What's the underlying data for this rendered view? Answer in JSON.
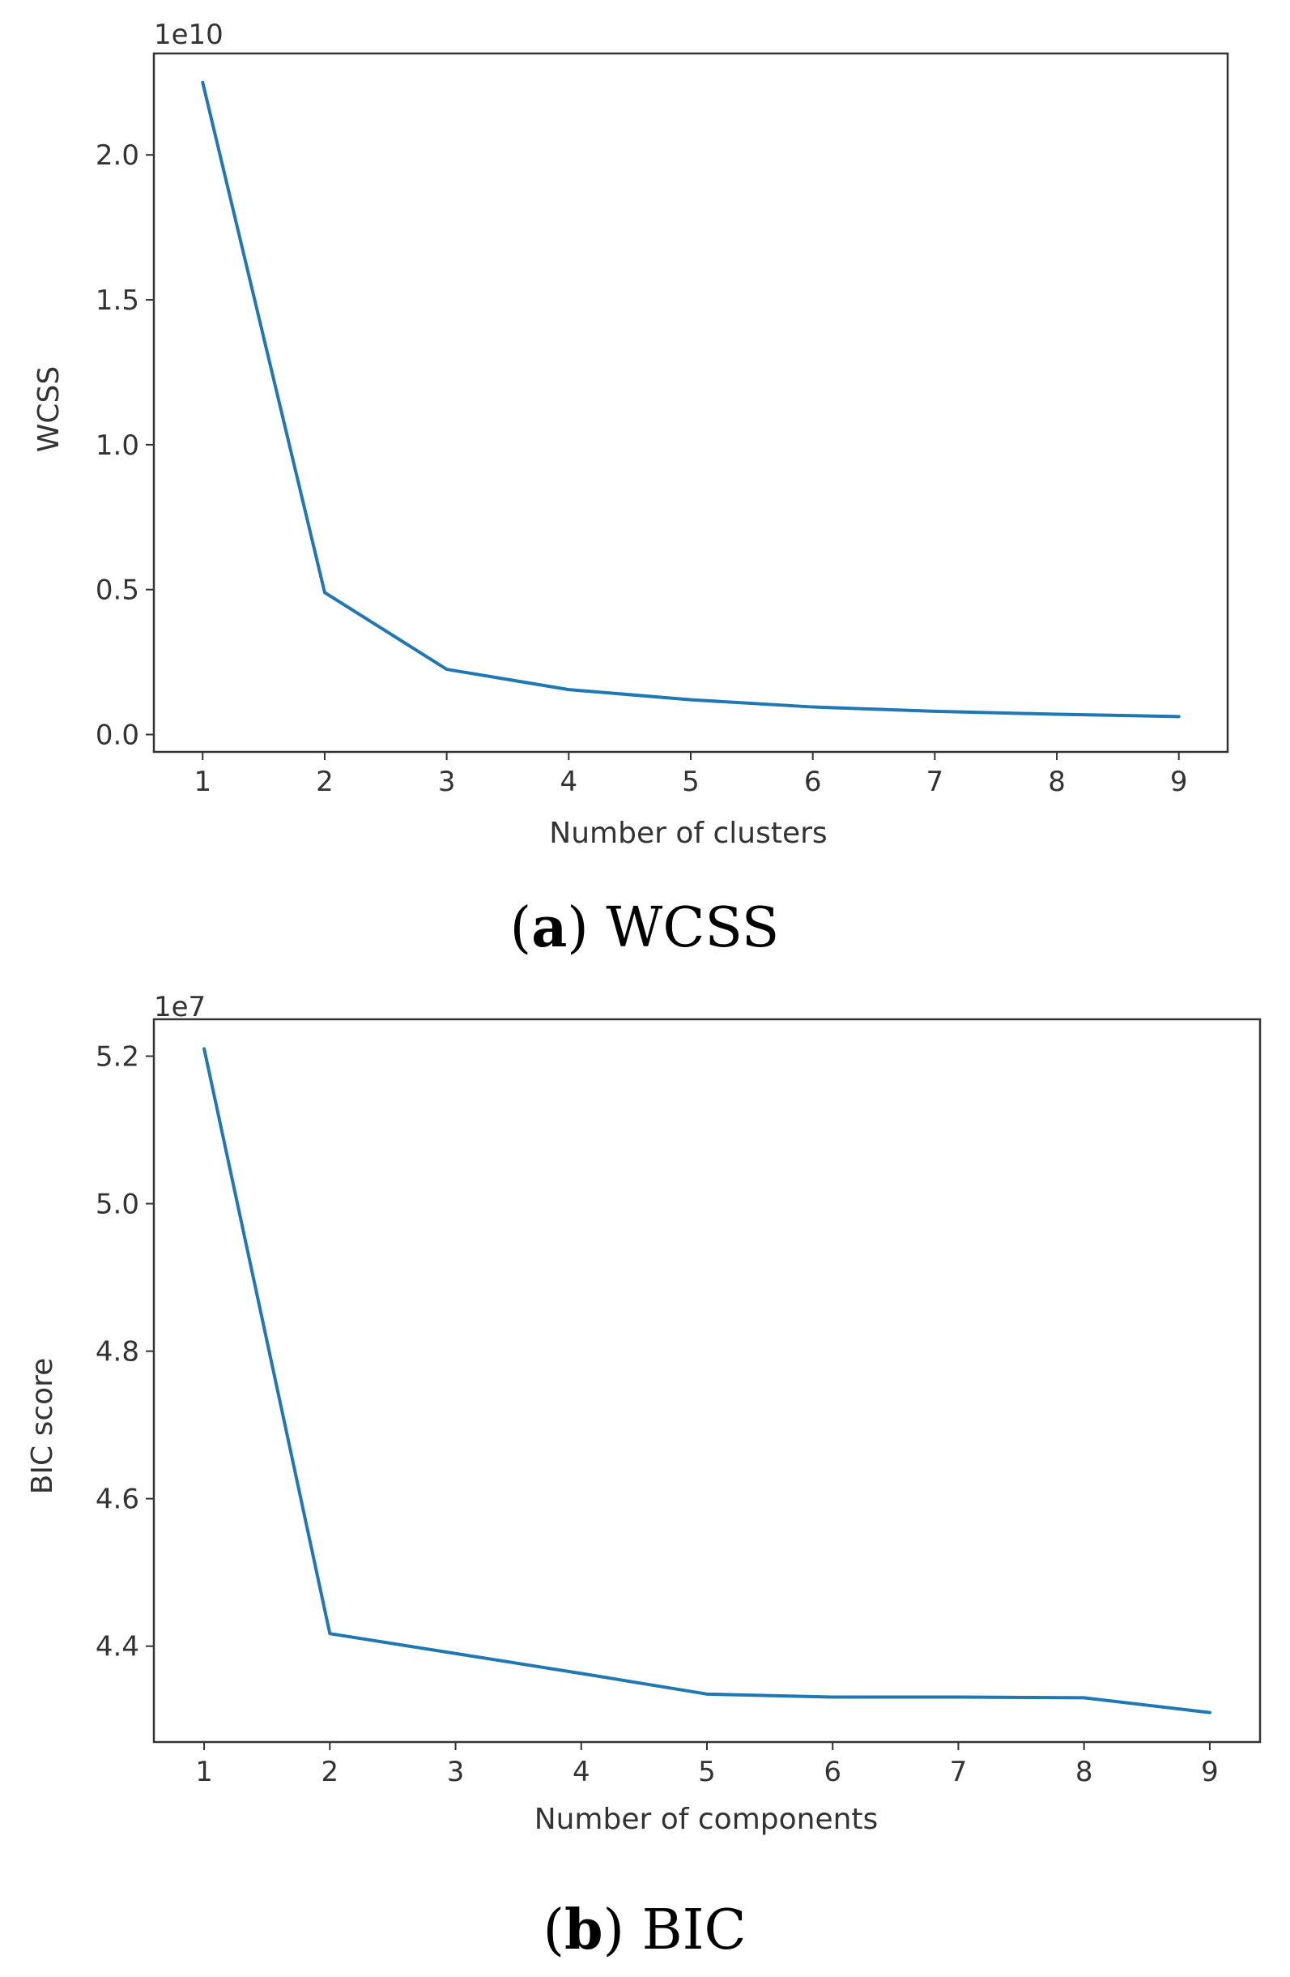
{
  "chart_data": [
    {
      "type": "line",
      "x": [
        1,
        2,
        3,
        4,
        5,
        6,
        7,
        8,
        9
      ],
      "series": [
        {
          "name": "WCSS",
          "values": [
            2.25,
            0.49,
            0.225,
            0.155,
            0.12,
            0.095,
            0.08,
            0.07,
            0.062
          ]
        }
      ],
      "xlabel": "Number of clusters",
      "ylabel": "WCSS",
      "offset_text": "1e10",
      "xlim": [
        0.6,
        9.4
      ],
      "ylim": [
        -0.06,
        2.35
      ],
      "xticks": [
        1,
        2,
        3,
        4,
        5,
        6,
        7,
        8,
        9
      ],
      "yticks": [
        0.0,
        0.5,
        1.0,
        1.5,
        2.0
      ],
      "ytick_labels": [
        "0.0",
        "0.5",
        "1.0",
        "1.5",
        "2.0"
      ],
      "color": "#1f77b4",
      "grid": false,
      "caption_letter": "a",
      "caption_text": "WCSS"
    },
    {
      "type": "line",
      "x": [
        1,
        2,
        3,
        4,
        5,
        6,
        7,
        8,
        9
      ],
      "series": [
        {
          "name": "BIC score",
          "values": [
            5.21,
            4.417,
            4.39,
            4.363,
            4.335,
            4.331,
            4.331,
            4.33,
            4.31
          ]
        }
      ],
      "xlabel": "Number of components",
      "ylabel": "BIC score",
      "offset_text": "1e7",
      "xlim": [
        0.6,
        9.4
      ],
      "ylim": [
        4.27,
        5.25
      ],
      "xticks": [
        1,
        2,
        3,
        4,
        5,
        6,
        7,
        8,
        9
      ],
      "yticks": [
        4.4,
        4.6,
        4.8,
        5.0,
        5.2
      ],
      "ytick_labels": [
        "4.4",
        "4.6",
        "4.8",
        "5.0",
        "5.2"
      ],
      "color": "#1f77b4",
      "grid": false,
      "caption_letter": "b",
      "caption_text": "BIC"
    }
  ]
}
